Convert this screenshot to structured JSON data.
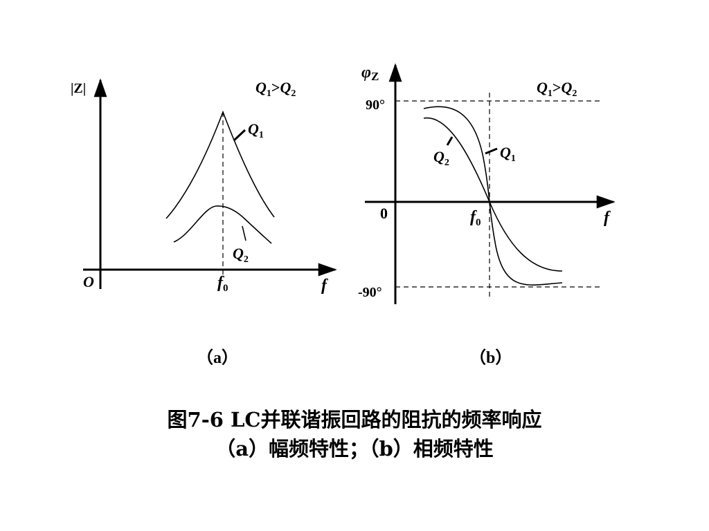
{
  "panel_a": {
    "y_axis_label": "|Z|",
    "origin_label": "O",
    "x_axis_label": "f",
    "center_label_main": "f",
    "center_label_sub": "0",
    "relation": {
      "q1": "Q",
      "q1_sub": "1",
      "gt": ">",
      "q2": "Q",
      "q2_sub": "2"
    },
    "curve_q1": {
      "main": "Q",
      "sub": "1"
    },
    "curve_q2": {
      "main": "Q",
      "sub": "2"
    },
    "panel_label": "（a）"
  },
  "panel_b": {
    "y_axis_main": "φ",
    "y_axis_sub": "Z",
    "tick_top": "90°",
    "tick_bottom": "-90°",
    "origin_label": "0",
    "x_axis_label": "f",
    "center_label_main": "f",
    "center_label_sub": "0",
    "relation": {
      "q1": "Q",
      "q1_sub": "1",
      "gt": ">",
      "q2": "Q",
      "q2_sub": "2"
    },
    "curve_q1": {
      "main": "Q",
      "sub": "1"
    },
    "curve_q2": {
      "main": "Q",
      "sub": "2"
    },
    "panel_label": "（b）"
  },
  "caption": {
    "line1": "图7-6  LC并联谐振回路的阻抗的频率响应",
    "line2": "（a）幅频特性；（b）相频特性"
  }
}
